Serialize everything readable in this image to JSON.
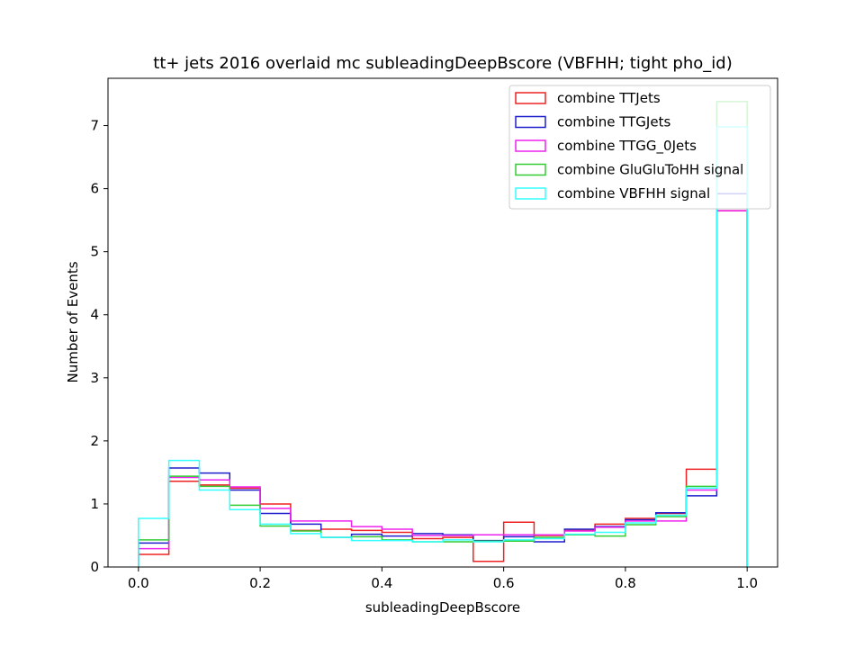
{
  "chart_data": {
    "type": "histogram",
    "title": "tt+ jets 2016 overlaid mc subleadingDeepBscore (VBFHH; tight pho_id)",
    "xlabel": "subleadingDeepBscore",
    "ylabel": "Number of Events",
    "xlim": [
      -0.05,
      1.05
    ],
    "ylim": [
      0,
      7.75
    ],
    "xticks": [
      0.0,
      0.2,
      0.4,
      0.6,
      0.8,
      1.0
    ],
    "xtick_labels": [
      "0.0",
      "0.2",
      "0.4",
      "0.6",
      "0.8",
      "1.0"
    ],
    "yticks": [
      0,
      1,
      2,
      3,
      4,
      5,
      6,
      7
    ],
    "ytick_labels": [
      "0",
      "1",
      "2",
      "3",
      "4",
      "5",
      "6",
      "7"
    ],
    "bin_edges": [
      0.0,
      0.05,
      0.1,
      0.15,
      0.2,
      0.25,
      0.3,
      0.35,
      0.4,
      0.45,
      0.5,
      0.55,
      0.6,
      0.65,
      0.7,
      0.75,
      0.8,
      0.85,
      0.9,
      0.95,
      1.0
    ],
    "legend_position": "top-right",
    "grid": false,
    "series": [
      {
        "name": "combine TTJets",
        "color": "#ee2222",
        "values": [
          0.2,
          1.36,
          1.3,
          1.25,
          1.0,
          0.58,
          0.6,
          0.58,
          0.55,
          0.45,
          0.47,
          0.09,
          0.71,
          0.5,
          0.58,
          0.68,
          0.77,
          0.85,
          1.55,
          5.65
        ]
      },
      {
        "name": "combine TTGJets",
        "color": "#1e1ecc",
        "values": [
          0.38,
          1.57,
          1.49,
          1.22,
          0.85,
          0.68,
          0.47,
          0.52,
          0.49,
          0.53,
          0.51,
          0.42,
          0.48,
          0.4,
          0.6,
          0.64,
          0.75,
          0.86,
          1.13,
          5.92
        ]
      },
      {
        "name": "combine TTGG_0Jets",
        "color": "#ee22ee",
        "values": [
          0.29,
          1.42,
          1.38,
          1.27,
          0.93,
          0.73,
          0.73,
          0.64,
          0.6,
          0.5,
          0.5,
          0.51,
          0.51,
          0.51,
          0.57,
          0.63,
          0.73,
          0.73,
          1.22,
          5.65
        ]
      },
      {
        "name": "combine GluGluToHH signal",
        "color": "#33cc33",
        "values": [
          0.43,
          1.44,
          1.28,
          0.98,
          0.65,
          0.57,
          0.47,
          0.48,
          0.43,
          0.4,
          0.4,
          0.41,
          0.41,
          0.47,
          0.51,
          0.49,
          0.67,
          0.8,
          1.28,
          7.38
        ]
      },
      {
        "name": "combine VBFHH signal",
        "color": "#33ffff",
        "values": [
          0.77,
          1.69,
          1.22,
          0.91,
          0.68,
          0.53,
          0.47,
          0.42,
          0.42,
          0.4,
          0.43,
          0.4,
          0.43,
          0.45,
          0.52,
          0.55,
          0.7,
          0.82,
          1.25,
          6.98
        ]
      }
    ]
  }
}
